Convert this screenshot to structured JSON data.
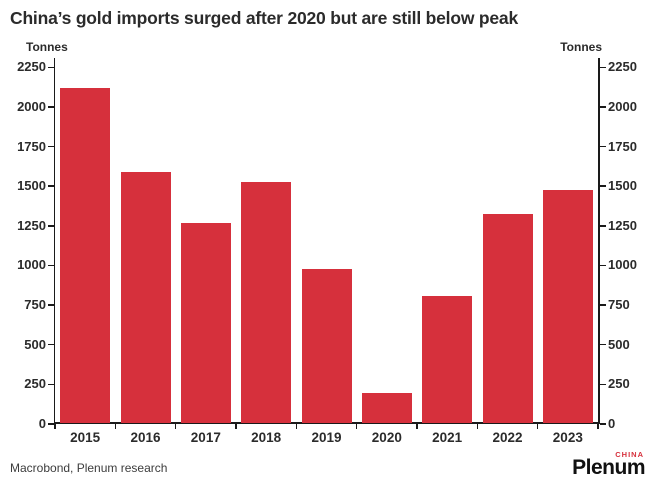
{
  "title": "China’s gold imports surged after 2020 but are still below peak",
  "chart_data": {
    "type": "bar",
    "title": "China’s gold imports surged after 2020 but are still below peak",
    "categories": [
      "2015",
      "2016",
      "2017",
      "2018",
      "2019",
      "2020",
      "2021",
      "2022",
      "2023"
    ],
    "values": [
      2120,
      1590,
      1265,
      1525,
      975,
      195,
      810,
      1325,
      1475
    ],
    "xlabel": "",
    "ylabel_left": "Tonnes",
    "ylabel_right": "Tonnes",
    "ylim": [
      0,
      2250
    ],
    "yticks": [
      0,
      250,
      500,
      750,
      1000,
      1250,
      1500,
      1750,
      2000,
      2250
    ],
    "grid": false,
    "legend": "none",
    "bar_color": "#d6303c"
  },
  "footer": {
    "source": "Macrobond, Plenum research"
  },
  "logo": {
    "name": "Plenum",
    "region": "CHINA"
  },
  "colors": {
    "bar": "#d6303c",
    "accent_red": "#d6303c",
    "axis": "#1a1a1a",
    "title": "#2b2b2b"
  }
}
